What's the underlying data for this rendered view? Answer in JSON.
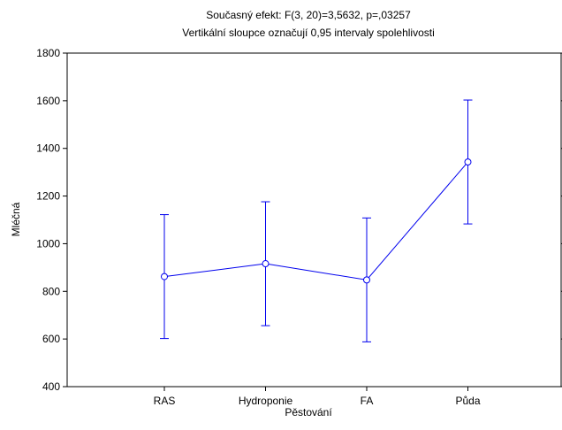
{
  "chart_data": {
    "type": "line",
    "title": "Současný efekt: F(3, 20)=3,5632, p=,03257",
    "subtitle": "Vertikální sloupce označují 0,95 intervaly spolehlivosti",
    "xlabel": "Pěstování",
    "ylabel": "Mléčná",
    "categories": [
      "RAS",
      "Hydroponie",
      "FA",
      "Půda"
    ],
    "series": [
      {
        "values": [
          862,
          916,
          848,
          1343
        ],
        "ci_lower": [
          602,
          656,
          588,
          1083
        ],
        "ci_upper": [
          1122,
          1176,
          1108,
          1603
        ]
      }
    ],
    "ylim": [
      400,
      1800
    ],
    "yticks": [
      400,
      600,
      800,
      1000,
      1200,
      1400,
      1600,
      1800
    ],
    "grid": false,
    "colors": {
      "series": "#0000ee",
      "axis": "#000000"
    }
  }
}
